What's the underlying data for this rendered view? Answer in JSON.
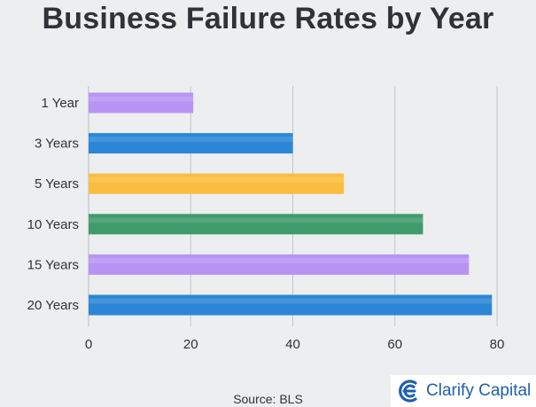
{
  "chart_data": {
    "type": "bar",
    "orientation": "horizontal",
    "title": "Business Failure Rates by Year",
    "categories": [
      "1 Year",
      "3 Years",
      "5 Years",
      "10 Years",
      "15 Years",
      "20 Years"
    ],
    "values": [
      20.5,
      40,
      50,
      65.5,
      74.5,
      79
    ],
    "bar_colors": [
      "#b794f4",
      "#2b87d6",
      "#fbbd3f",
      "#3f9b6c",
      "#b794f4",
      "#2b87d6"
    ],
    "xlim": [
      0,
      80
    ],
    "xticks": [
      0,
      20,
      40,
      60,
      80
    ],
    "grid": "vertical",
    "xlabel": "",
    "ylabel": ""
  },
  "footer": {
    "source": "Source: BLS",
    "brand_name": "Clarify Capital",
    "brand_icon": "clarify-logo-icon",
    "brand_color": "#1f5fae"
  }
}
